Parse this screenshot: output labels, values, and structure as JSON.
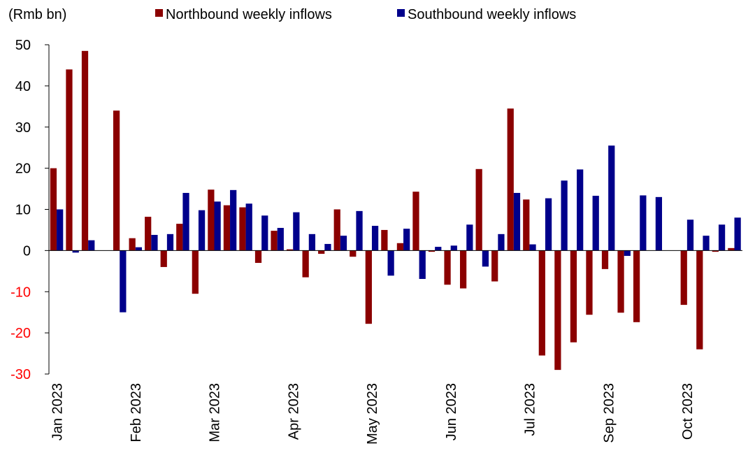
{
  "chart_data": {
    "type": "bar",
    "unit_label": "(Rmb bn)",
    "ylim": [
      -30,
      50
    ],
    "yticks": [
      -30,
      -20,
      -10,
      0,
      10,
      20,
      30,
      40,
      50
    ],
    "negative_tick_color": "#ff0000",
    "legend_position": "top",
    "x_tick_labels": [
      {
        "label": "Jan 2023",
        "index": 0
      },
      {
        "label": "Feb 2023",
        "index": 5
      },
      {
        "label": "Mar 2023",
        "index": 10
      },
      {
        "label": "Apr 2023",
        "index": 15
      },
      {
        "label": "May 2023",
        "index": 20
      },
      {
        "label": "Jun 2023",
        "index": 25
      },
      {
        "label": "Jul 2023",
        "index": 30
      },
      {
        "label": "Sep 2023",
        "index": 35
      },
      {
        "label": "Oct 2023",
        "index": 40
      }
    ],
    "n_weeks": 44,
    "series": [
      {
        "name": "Northbound weekly inflows",
        "color": "#8b0000",
        "values": [
          20,
          44,
          48.5,
          null,
          34,
          3,
          8.2,
          -4,
          6.5,
          -10.5,
          14.8,
          11,
          10.5,
          -3,
          4.8,
          0.3,
          -6.5,
          -0.8,
          10,
          -1.5,
          -17.8,
          5,
          1.8,
          14.3,
          -0.3,
          -8.3,
          -9.2,
          19.8,
          -7.5,
          34.5,
          12.4,
          -25.5,
          -29,
          -22.3,
          -15.6,
          -4.5,
          -15.1,
          -17.4,
          null,
          null,
          -13.2,
          -24,
          -0.3,
          0.6
        ]
      },
      {
        "name": "Southbound weekly inflows",
        "color": "#00008b",
        "values": [
          10,
          -0.5,
          2.5,
          null,
          -15,
          0.8,
          3.8,
          4,
          14,
          9.8,
          11.9,
          14.7,
          11.4,
          8.5,
          5.5,
          9.3,
          4,
          1.6,
          3.6,
          9.6,
          6,
          -6.1,
          5.3,
          -6.9,
          0.9,
          1.2,
          6.3,
          -3.9,
          4,
          14,
          1.5,
          12.7,
          17,
          19.7,
          13.3,
          25.5,
          -1.3,
          13.4,
          13,
          null,
          7.5,
          3.6,
          6.3,
          8
        ]
      }
    ]
  }
}
